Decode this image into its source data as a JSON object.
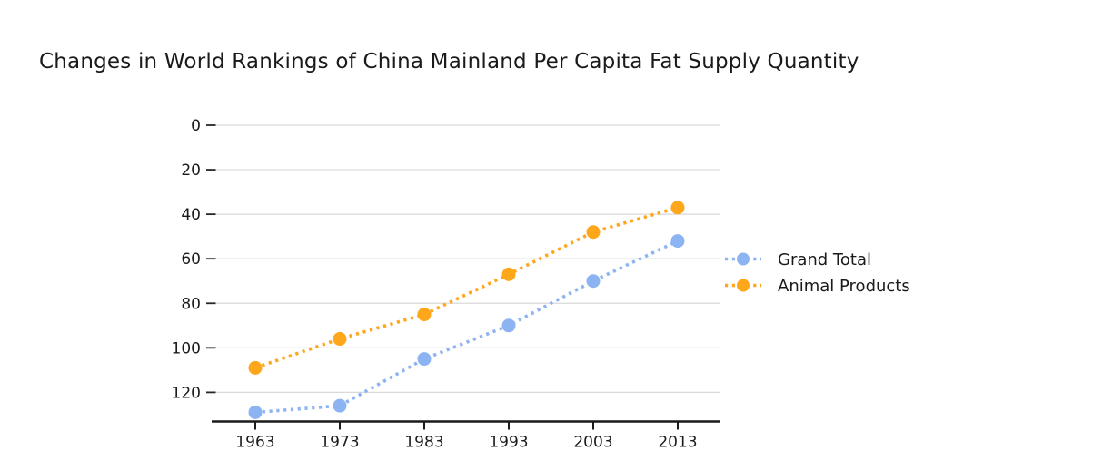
{
  "header": {
    "title": "Changes in World Rankings of China Mainland Per Capita Fat Supply Quantity"
  },
  "chart_data": {
    "type": "line",
    "title": "Changes in World Rankings of China Mainland Per Capita Fat Supply Quantity",
    "x": [
      1963,
      1973,
      1983,
      1993,
      2003,
      2013
    ],
    "series": [
      {
        "name": "Grand Total",
        "color": "#8db4f2",
        "values": [
          129,
          126,
          105,
          90,
          70,
          52
        ]
      },
      {
        "name": "Animal Products",
        "color": "#ffa71a",
        "values": [
          109,
          96,
          85,
          67,
          48,
          37
        ]
      }
    ],
    "xlabel": "",
    "ylabel": "",
    "yticks": [
      0,
      20,
      40,
      60,
      80,
      100,
      120
    ],
    "ylim": [
      0,
      133
    ],
    "y_axis_inverted": true,
    "line_style": "dotted",
    "marker": "circle",
    "grid": "horizontal",
    "legend_position": "right-of-plot",
    "colors": {
      "gridline": "#d9d9d9",
      "axis": "#262626",
      "text": "#1a1a1a"
    }
  },
  "legend": {
    "items": [
      {
        "label": "Grand Total"
      },
      {
        "label": "Animal Products"
      }
    ]
  }
}
